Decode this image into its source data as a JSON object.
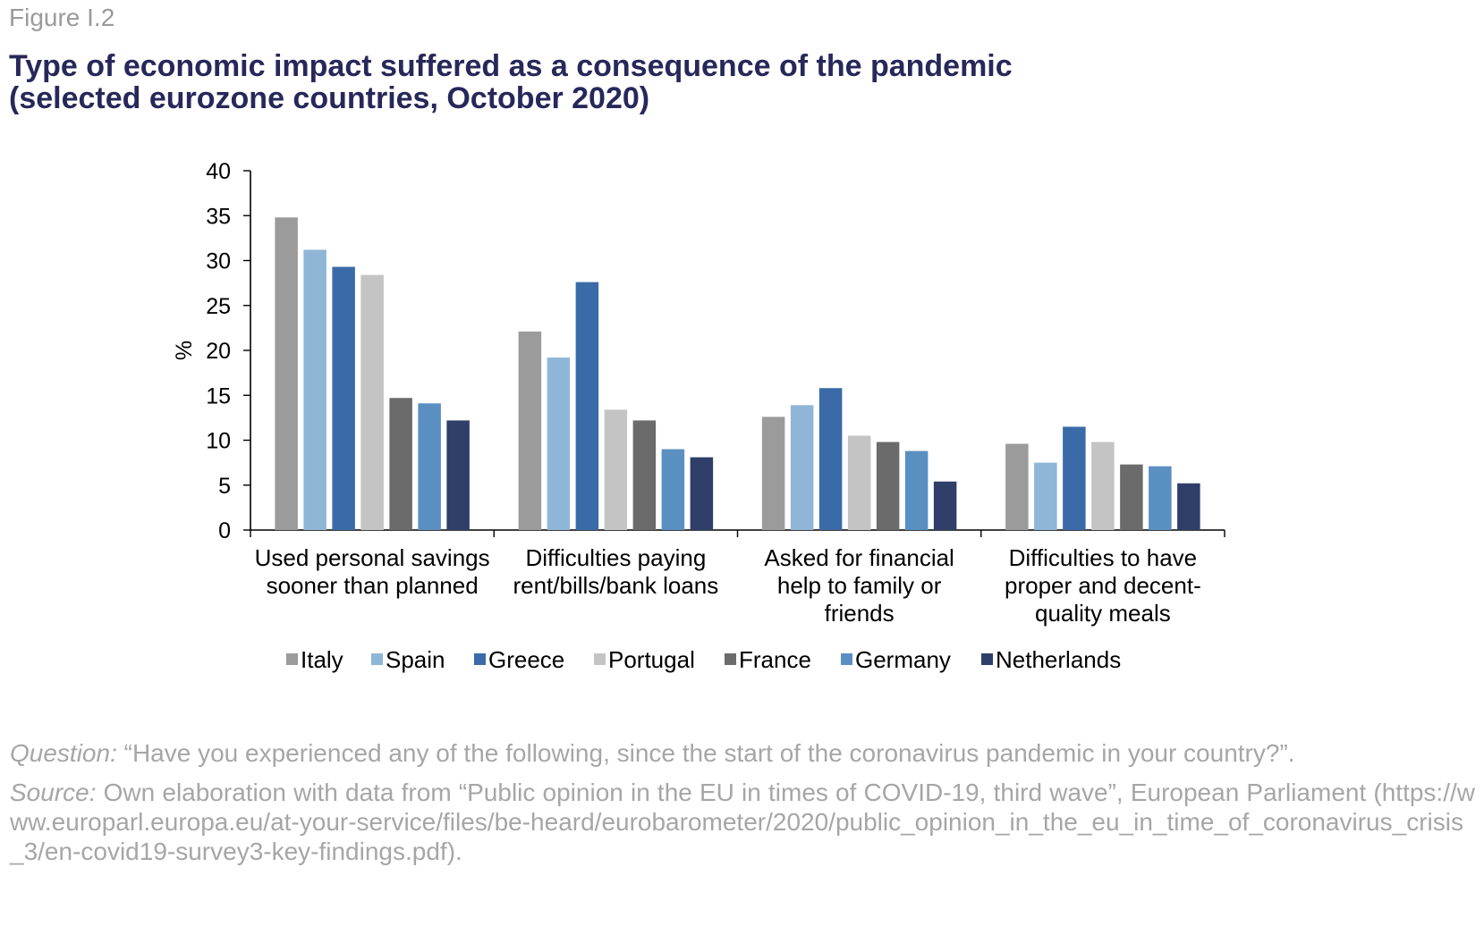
{
  "figure_label": "Figure I.2",
  "title_line1": "Type of economic impact suffered as a consequence of the pandemic",
  "title_line2": "(selected eurozone countries, October 2020)",
  "chart_data": {
    "type": "bar",
    "ylabel": "%",
    "ylim": [
      0,
      40
    ],
    "yticks": [
      0,
      5,
      10,
      15,
      20,
      25,
      30,
      35,
      40
    ],
    "categories": [
      [
        "Used personal savings",
        "sooner than planned"
      ],
      [
        "Difficulties paying",
        "rent/bills/bank loans"
      ],
      [
        "Asked for financial",
        "help to family or",
        "friends"
      ],
      [
        "Difficulties to have",
        "proper and decent-",
        "quality meals"
      ]
    ],
    "series": [
      {
        "name": "Italy",
        "color": "#9b9b9b",
        "values": [
          34.8,
          22.1,
          12.6,
          9.6
        ]
      },
      {
        "name": "Spain",
        "color": "#8fb6d6",
        "values": [
          31.2,
          19.2,
          13.9,
          7.5
        ]
      },
      {
        "name": "Greece",
        "color": "#3a6ba8",
        "values": [
          29.3,
          27.6,
          15.8,
          11.5
        ]
      },
      {
        "name": "Portugal",
        "color": "#c4c4c4",
        "values": [
          28.4,
          13.4,
          10.5,
          9.8
        ]
      },
      {
        "name": "France",
        "color": "#6b6b6b",
        "values": [
          14.7,
          12.2,
          9.8,
          7.3
        ]
      },
      {
        "name": "Germany",
        "color": "#5a8fc2",
        "values": [
          14.1,
          9.0,
          8.8,
          7.1
        ]
      },
      {
        "name": "Netherlands",
        "color": "#2f3f6a",
        "values": [
          12.2,
          8.1,
          5.4,
          5.2
        ]
      }
    ],
    "legend_position": "bottom"
  },
  "notes": {
    "question_label": "Question:",
    "question_text": " “Have you experienced any of the following, since the start of the coronavirus pandemic in your country?”.",
    "source_label": "Source:",
    "source_text": " Own elaboration with data from “Public opinion in the EU in times of COVID-19, third wave”, European Parliament (https://www.europarl.europa.eu/at-your-service/files/be-heard/eurobarometer/2020/public_opinion_in_the_eu_in_time_of_coronavirus_crisis_3/en-covid19-survey3-key-findings.pdf)."
  }
}
